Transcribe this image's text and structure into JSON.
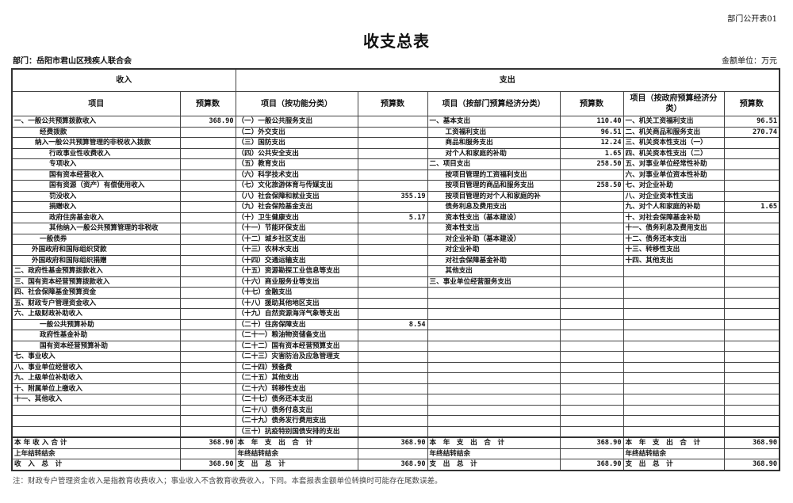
{
  "header": {
    "form_code": "部门公开表01",
    "title": "收支总表",
    "department": "部门：岳阳市君山区残疾人联合会",
    "unit": "金额单位：万元"
  },
  "columns": {
    "income": "收入",
    "expense": "支出",
    "item": "项目",
    "budget": "预算数",
    "func_item": "项目（按功能分类）",
    "dept_item": "项目（按部门预算经济分类）",
    "gov_item": "项目（按政府预算经济分类）"
  },
  "income": [
    {
      "label": "一、一般公共预算拨款收入",
      "value": "368.90",
      "indent": 0
    },
    {
      "label": "经费拨款",
      "value": "",
      "indent": 34
    },
    {
      "label": "纳入一般公共预算管理的非税收入拨款",
      "value": "",
      "indent": 28
    },
    {
      "label": "行政事业性收费收入",
      "value": "",
      "indent": 46
    },
    {
      "label": "专项收入",
      "value": "",
      "indent": 46
    },
    {
      "label": "国有资本经营收入",
      "value": "",
      "indent": 46
    },
    {
      "label": "国有资源（资产）有偿使用收入",
      "value": "",
      "indent": 46
    },
    {
      "label": "罚没收入",
      "value": "",
      "indent": 46
    },
    {
      "label": "捐赠收入",
      "value": "",
      "indent": 46
    },
    {
      "label": "政府住房基金收入",
      "value": "",
      "indent": 46
    },
    {
      "label": "其他纳入一般公共预算管理的非税收",
      "value": "",
      "indent": 46
    },
    {
      "label": "一般债券",
      "value": "",
      "indent": 34
    },
    {
      "label": "外国政府和国际组织贷款",
      "value": "",
      "indent": 24
    },
    {
      "label": "外国政府和国际组织捐赠",
      "value": "",
      "indent": 24
    },
    {
      "label": "二、政府性基金预算拨款收入",
      "value": "",
      "indent": 0
    },
    {
      "label": "三、国有资本经营预算拨款收入",
      "value": "",
      "indent": 0
    },
    {
      "label": "四、社会保障基金预算资金",
      "value": "",
      "indent": 0
    },
    {
      "label": "五、财政专户管理资金收入",
      "value": "",
      "indent": 0
    },
    {
      "label": "六、上级财政补助收入",
      "value": "",
      "indent": 0
    },
    {
      "label": "一般公共预算补助",
      "value": "",
      "indent": 34
    },
    {
      "label": "政府性基金补助",
      "value": "",
      "indent": 34
    },
    {
      "label": "国有资本经营预算补助",
      "value": "",
      "indent": 34
    },
    {
      "label": "七、事业收入",
      "value": "",
      "indent": 0
    },
    {
      "label": "八、事业单位经营收入",
      "value": "",
      "indent": 0
    },
    {
      "label": "九、上级单位补助收入",
      "value": "",
      "indent": 0
    },
    {
      "label": "十、附属单位上缴收入",
      "value": "",
      "indent": 0
    },
    {
      "label": "十一、其他收入",
      "value": "",
      "indent": 0
    }
  ],
  "functional": [
    {
      "label": "（一）一般公共服务支出",
      "value": ""
    },
    {
      "label": "（二）外交支出",
      "value": ""
    },
    {
      "label": "（三）国防支出",
      "value": ""
    },
    {
      "label": "（四）公共安全支出",
      "value": ""
    },
    {
      "label": "（五）教育支出",
      "value": ""
    },
    {
      "label": "（六）科学技术支出",
      "value": ""
    },
    {
      "label": "（七）文化旅游体育与传媒支出",
      "value": ""
    },
    {
      "label": "（八）社会保障和就业支出",
      "value": "355.19"
    },
    {
      "label": "（九）社会保险基金支出",
      "value": ""
    },
    {
      "label": "（十）卫生健康支出",
      "value": "5.17"
    },
    {
      "label": "（十一）节能环保支出",
      "value": ""
    },
    {
      "label": "（十二）城乡社区支出",
      "value": ""
    },
    {
      "label": "（十三）农林水支出",
      "value": ""
    },
    {
      "label": "（十四）交通运输支出",
      "value": ""
    },
    {
      "label": "（十五）资源勘探工业信息等支出",
      "value": ""
    },
    {
      "label": "（十六）商业服务业等支出",
      "value": ""
    },
    {
      "label": "（十七）金融支出",
      "value": ""
    },
    {
      "label": "（十八）援助其他地区支出",
      "value": ""
    },
    {
      "label": "（十九）自然资源海洋气象等支出",
      "value": ""
    },
    {
      "label": "（二十）住房保障支出",
      "value": "8.54"
    },
    {
      "label": "（二十一）粮油物资储备支出",
      "value": ""
    },
    {
      "label": "（二十二）国有资本经营预算支出",
      "value": ""
    },
    {
      "label": "（二十三）灾害防治及应急管理支",
      "value": ""
    },
    {
      "label": "（二十四）预备费",
      "value": ""
    },
    {
      "label": "（二十五）其他支出",
      "value": ""
    },
    {
      "label": "（二十六）转移性支出",
      "value": ""
    },
    {
      "label": "（二十七）债务还本支出",
      "value": ""
    },
    {
      "label": "（二十八）债务付息支出",
      "value": ""
    },
    {
      "label": "（二十九）债务发行费用支出",
      "value": ""
    },
    {
      "label": "（三十）抗疫特别国债安排的支出",
      "value": ""
    }
  ],
  "department_econ": [
    {
      "label": "一、基本支出",
      "value": "110.40",
      "indent": 0
    },
    {
      "label": "工资福利支出",
      "value": "96.51",
      "indent": 22
    },
    {
      "label": "商品和服务支出",
      "value": "12.24",
      "indent": 22
    },
    {
      "label": "对个人和家庭的补助",
      "value": "1.65",
      "indent": 22
    },
    {
      "label": "二、项目支出",
      "value": "258.50",
      "indent": 0
    },
    {
      "label": "按项目管理的工资福利支出",
      "value": "",
      "indent": 22
    },
    {
      "label": "按项目管理的商品和服务支出",
      "value": "258.50",
      "indent": 22
    },
    {
      "label": "按项目管理的对个人和家庭的补",
      "value": "",
      "indent": 22
    },
    {
      "label": "债务利息及费用支出",
      "value": "",
      "indent": 22
    },
    {
      "label": "资本性支出（基本建设）",
      "value": "",
      "indent": 22
    },
    {
      "label": "资本性支出",
      "value": "",
      "indent": 22
    },
    {
      "label": "对企业补助（基本建设）",
      "value": "",
      "indent": 22
    },
    {
      "label": "对企业补助",
      "value": "",
      "indent": 22
    },
    {
      "label": "对社会保障基金补助",
      "value": "",
      "indent": 22
    },
    {
      "label": "其他支出",
      "value": "",
      "indent": 22
    },
    {
      "label": "三、事业单位经营服务支出",
      "value": "",
      "indent": 0
    }
  ],
  "government_econ": [
    {
      "label": "一、机关工资福利支出",
      "value": "96.51"
    },
    {
      "label": "二、机关商品和服务支出",
      "value": "270.74"
    },
    {
      "label": "三、机关资本性支出（一）",
      "value": ""
    },
    {
      "label": "四、机关资本性支出（二）",
      "value": ""
    },
    {
      "label": "五、对事业单位经常性补助",
      "value": ""
    },
    {
      "label": "六、对事业单位资本性补助",
      "value": ""
    },
    {
      "label": "七、对企业补助",
      "value": ""
    },
    {
      "label": "八、对企业资本性支出",
      "value": ""
    },
    {
      "label": "九、对个人和家庭的补助",
      "value": "1.65"
    },
    {
      "label": "十、对社会保障基金补助",
      "value": ""
    },
    {
      "label": "十一、债务利息及费用支出",
      "value": ""
    },
    {
      "label": "十二、债务还本支出",
      "value": ""
    },
    {
      "label": "十三、转移性支出",
      "value": ""
    },
    {
      "label": "十四、其他支出",
      "value": ""
    }
  ],
  "summary": [
    {
      "income_label": "本 年 收 入 合 计",
      "income_value": "368.90",
      "exp_label": "本　年　支　出　合　计",
      "exp_value": "368.90"
    },
    {
      "income_label": "上年结转结余",
      "income_value": "",
      "exp_label": "年终结转结余",
      "exp_value": ""
    },
    {
      "income_label": "收　入　总　计",
      "income_value": "368.90",
      "exp_label": "支　出　总　计",
      "exp_value": "368.90"
    }
  ],
  "note": "注：财政专户管理资金收入是指教育收费收入；事业收入不含教育收费收入，下同。本套报表金额单位转换时可能存在尾数误差。"
}
